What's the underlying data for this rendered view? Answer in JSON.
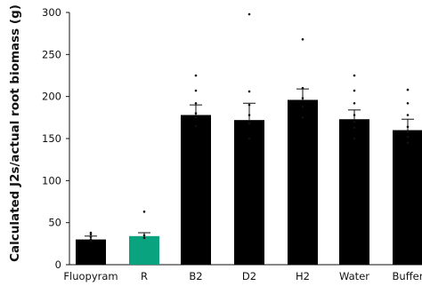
{
  "chart_data": {
    "type": "bar",
    "title": "",
    "xlabel": "",
    "ylabel": "Calculated J2s/actual root biomass (g)",
    "ylim": [
      0,
      300
    ],
    "yticks": [
      0,
      50,
      100,
      150,
      200,
      250,
      300
    ],
    "categories": [
      "Fluopyram",
      "R",
      "B2",
      "D2",
      "H2",
      "Water",
      "Buffer"
    ],
    "values": [
      30,
      34,
      178,
      172,
      196,
      173,
      160
    ],
    "errors": [
      4,
      4,
      12,
      20,
      13,
      11,
      13
    ],
    "bar_colors": [
      "#000000",
      "#0aa37f",
      "#000000",
      "#000000",
      "#000000",
      "#000000",
      "#000000"
    ],
    "points": [
      [
        28,
        30,
        33,
        36,
        38
      ],
      [
        32,
        35,
        63
      ],
      [
        165,
        175,
        180,
        192,
        207,
        225
      ],
      [
        150,
        168,
        178,
        190,
        206,
        300
      ],
      [
        175,
        188,
        198,
        210,
        268
      ],
      [
        150,
        163,
        170,
        178,
        192,
        207,
        225
      ],
      [
        145,
        152,
        158,
        164,
        178,
        192,
        208
      ]
    ],
    "grid": false,
    "legend": "none"
  }
}
